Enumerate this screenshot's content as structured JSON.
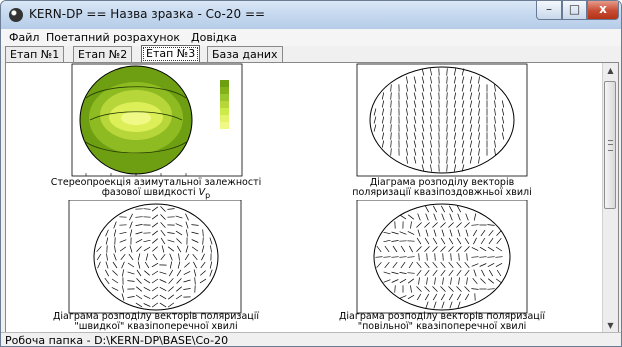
{
  "window": {
    "title": "KERN-DP == Назва зразка - Co-20 ==",
    "min_symbol": "–",
    "max_symbol": "□",
    "close_symbol": "x"
  },
  "menu": {
    "items": [
      "Файл",
      "Поетапний розрахунок",
      "Довідка"
    ]
  },
  "tabs": {
    "items": [
      "Етап №1",
      "Етап №2",
      "Етап №3",
      "База даних"
    ],
    "active": "Етап №3"
  },
  "plots": [
    {
      "caption1": "Стереопроекція азимутальної залежності",
      "caption2": "фазової швидкості",
      "symbol": "V",
      "subscript": "p"
    },
    {
      "caption1": "Діаграма розподілу векторів",
      "caption2": "поляризації квазіпоздовжньої хвилі"
    },
    {
      "caption1": "Діаграма розподілу векторів поляризації",
      "caption2": "\"швидкої\" квазіпоперечної хвилі"
    },
    {
      "caption1": "Діаграма розподілу векторів поляризації",
      "caption2": "\"повільної\" квазіпоперечної хвилі"
    }
  ],
  "status": {
    "text": "Робоча папка - D:\\KERN-DP\\BASE\\Co-20"
  },
  "colors": {
    "contour_dark": "#6e9f13",
    "contour_mid": "#a8cd31",
    "contour_light": "#eef86a",
    "title_bar": "#c5d8ef",
    "close_button": "#c74a32"
  }
}
